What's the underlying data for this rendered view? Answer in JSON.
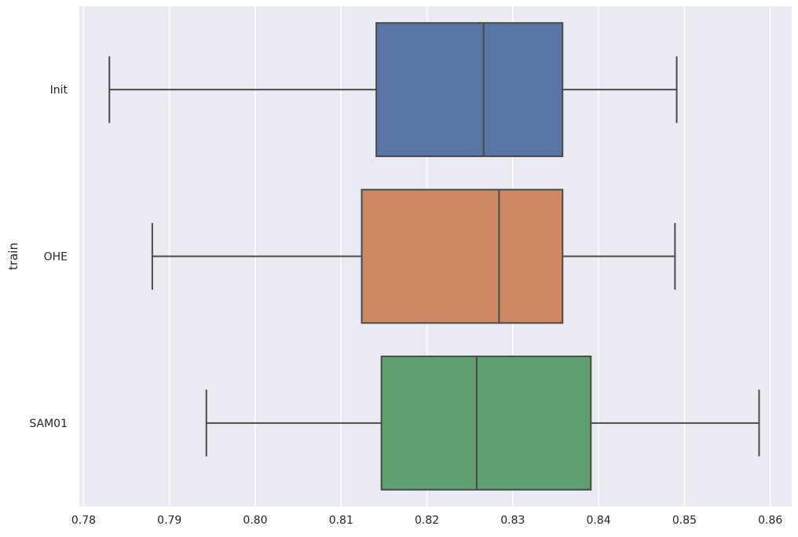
{
  "chart_data": {
    "type": "box",
    "orientation": "horizontal",
    "ylabel": "train",
    "xlabel": "",
    "xlim": [
      0.7795,
      0.8625
    ],
    "x_ticks": [
      0.78,
      0.79,
      0.8,
      0.81,
      0.82,
      0.83,
      0.84,
      0.85,
      0.86
    ],
    "x_tick_labels": [
      "0.78",
      "0.79",
      "0.80",
      "0.81",
      "0.82",
      "0.83",
      "0.84",
      "0.85",
      "0.86"
    ],
    "grid": true,
    "categories": [
      "Init",
      "OHE",
      "SAM01"
    ],
    "boxes": [
      {
        "label": "Init",
        "whisker_low": 0.783,
        "q1": 0.8141,
        "median": 0.8266,
        "q3": 0.8358,
        "whisker_high": 0.8491,
        "color": "#5875a4"
      },
      {
        "label": "OHE",
        "whisker_low": 0.788,
        "q1": 0.8124,
        "median": 0.8284,
        "q3": 0.8358,
        "whisker_high": 0.8489,
        "color": "#cc8963"
      },
      {
        "label": "SAM01",
        "whisker_low": 0.7943,
        "q1": 0.8147,
        "median": 0.8258,
        "q3": 0.8391,
        "whisker_high": 0.8587,
        "color": "#5f9e6e"
      }
    ]
  },
  "colors": {
    "plot_background": "#eaeaf2",
    "grid": "#ffffff",
    "line": "#4a4a4a"
  }
}
